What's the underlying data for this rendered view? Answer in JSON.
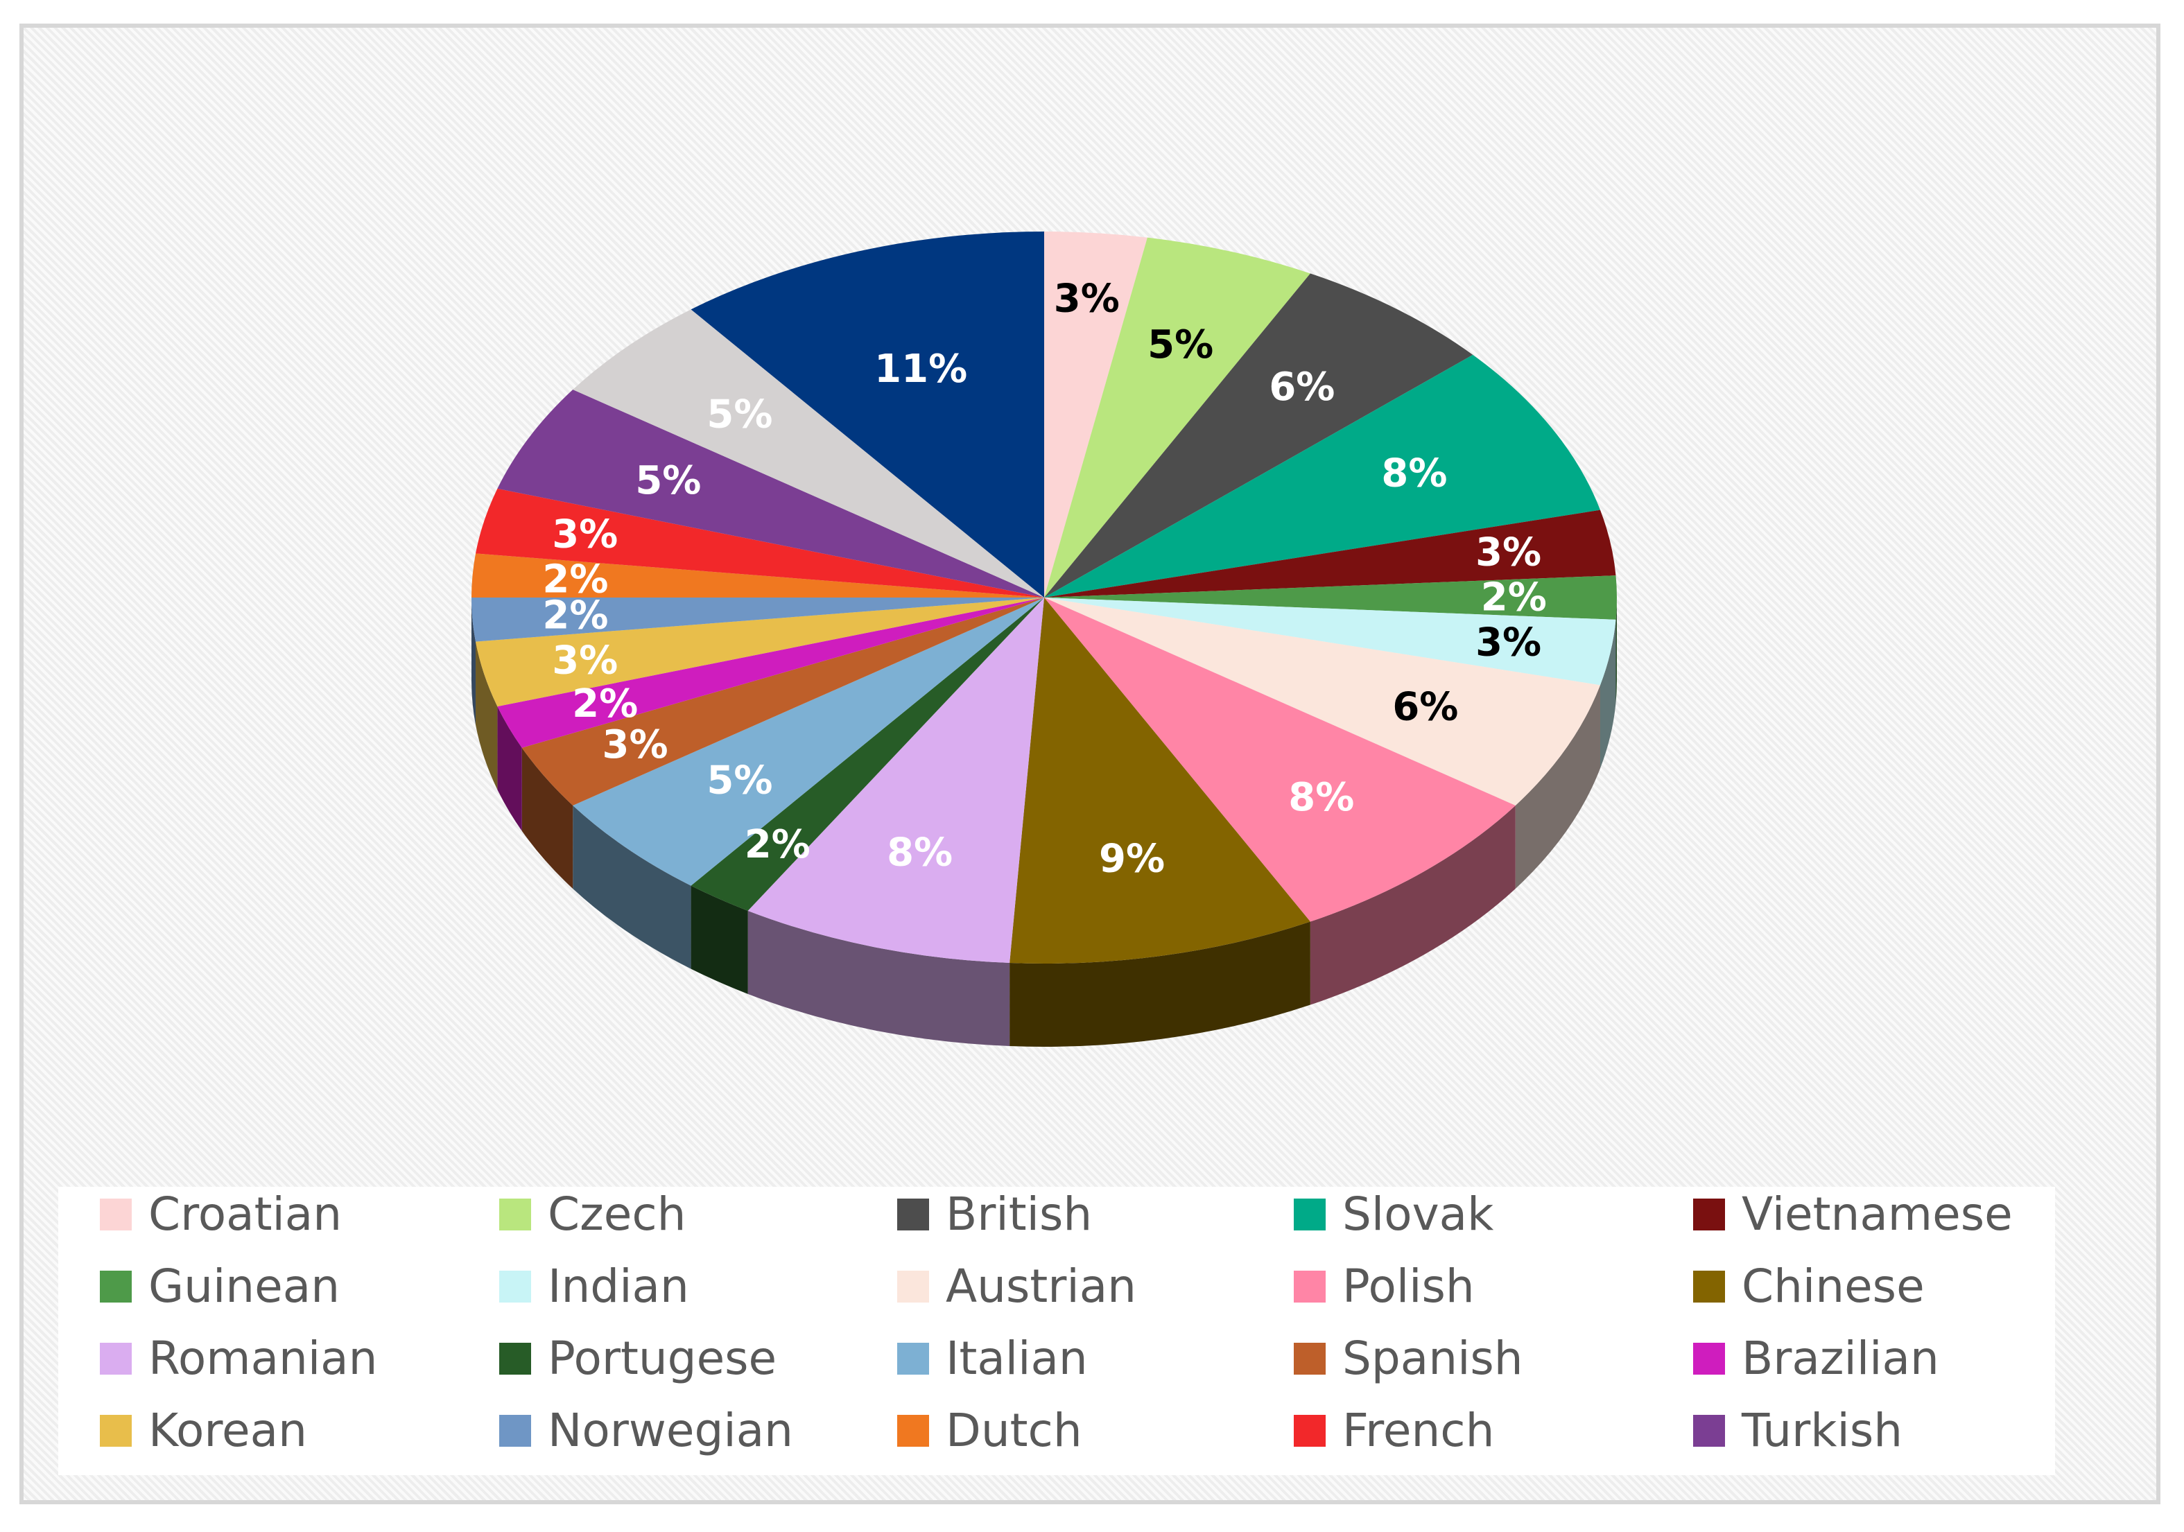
{
  "chart_data": {
    "type": "pie",
    "title": "",
    "legend_position": "bottom",
    "slices": [
      {
        "label": "Croatian",
        "value": 3,
        "display": "3%",
        "color": "#FCD5D5",
        "text_color": "#000000"
      },
      {
        "label": "Czech",
        "value": 5,
        "display": "5%",
        "color": "#B9E67E",
        "text_color": "#000000"
      },
      {
        "label": "British",
        "value": 6,
        "display": "6%",
        "color": "#4D4D4D",
        "text_color": "#FFFFFF"
      },
      {
        "label": "Slovak",
        "value": 8,
        "display": "8%",
        "color": "#00AA88",
        "text_color": "#FFFFFF"
      },
      {
        "label": "Vietnamese",
        "value": 3,
        "display": "3%",
        "color": "#7A1010",
        "text_color": "#FFFFFF"
      },
      {
        "label": "Guinean",
        "value": 2,
        "display": "2%",
        "color": "#4E9A49",
        "text_color": "#FFFFFF"
      },
      {
        "label": "Indian",
        "value": 3,
        "display": "3%",
        "color": "#C8F4F6",
        "text_color": "#000000"
      },
      {
        "label": "Austrian",
        "value": 6,
        "display": "6%",
        "color": "#FBE6DC",
        "text_color": "#000000"
      },
      {
        "label": "Polish",
        "value": 8,
        "display": "8%",
        "color": "#FF85A6",
        "text_color": "#FFFFFF"
      },
      {
        "label": "Chinese",
        "value": 9,
        "display": "9%",
        "color": "#836400",
        "text_color": "#FFFFFF"
      },
      {
        "label": "Romanian",
        "value": 8,
        "display": "8%",
        "color": "#DAADF0",
        "text_color": "#FFFFFF"
      },
      {
        "label": "Portugese",
        "value": 2,
        "display": "2%",
        "color": "#275C27",
        "text_color": "#FFFFFF"
      },
      {
        "label": "Italian",
        "value": 5,
        "display": "5%",
        "color": "#7DB0D3",
        "text_color": "#FFFFFF"
      },
      {
        "label": "Spanish",
        "value": 3,
        "display": "3%",
        "color": "#BE5F2A",
        "text_color": "#FFFFFF"
      },
      {
        "label": "Brazilian",
        "value": 2,
        "display": "2%",
        "color": "#CF1DBE",
        "text_color": "#FFFFFF"
      },
      {
        "label": "Korean",
        "value": 3,
        "display": "3%",
        "color": "#E8BE4B",
        "text_color": "#FFFFFF"
      },
      {
        "label": "Norwegian",
        "value": 2,
        "display": "2%",
        "color": "#6F96C5",
        "text_color": "#FFFFFF"
      },
      {
        "label": "Dutch",
        "value": 2,
        "display": "2%",
        "color": "#F07820",
        "text_color": "#FFFFFF"
      },
      {
        "label": "French",
        "value": 3,
        "display": "3%",
        "color": "#F2282A",
        "text_color": "#FFFFFF"
      },
      {
        "label": "Turkish",
        "value": 5,
        "display": "5%",
        "color": "#7B3E93",
        "text_color": "#FFFFFF"
      },
      {
        "label": "",
        "value": 5,
        "display": "5%",
        "color": "#D4D1D1",
        "text_color": "#FFFFFF"
      },
      {
        "label": "",
        "value": 11,
        "display": "11%",
        "color": "#003780",
        "text_color": "#FFFFFF"
      }
    ]
  }
}
